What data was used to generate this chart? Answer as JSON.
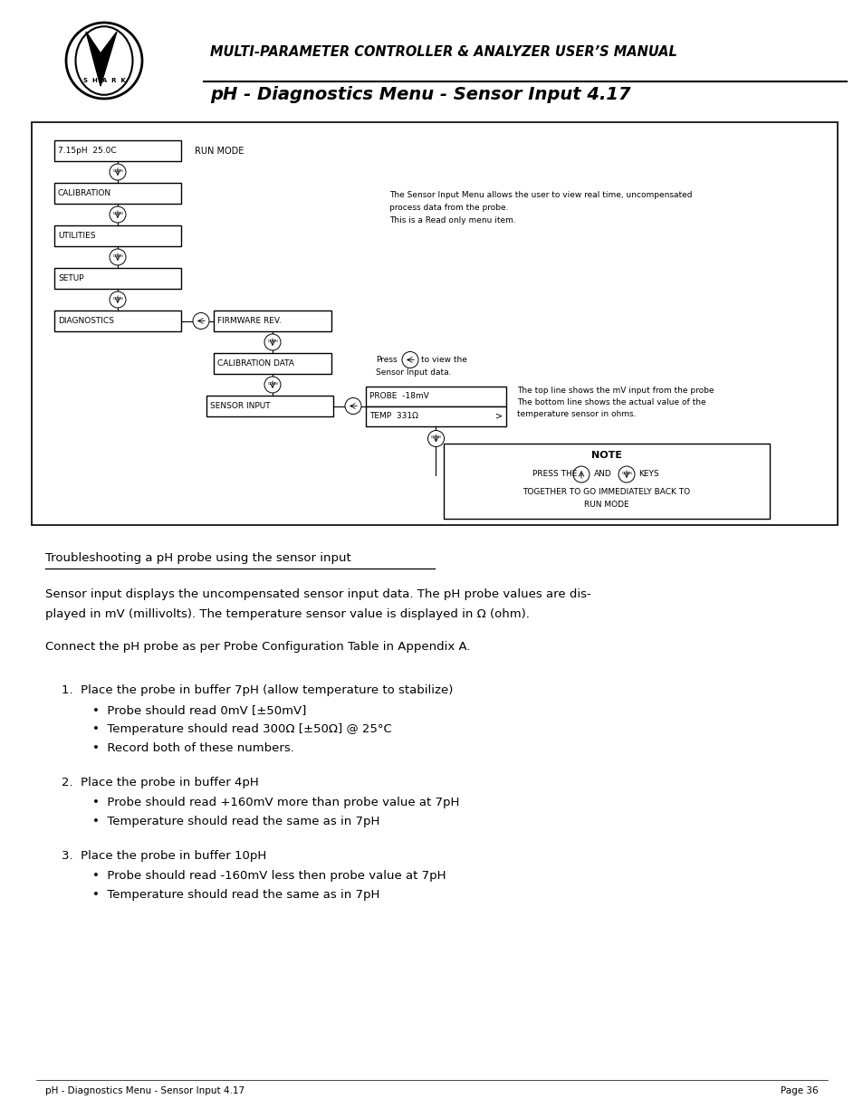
{
  "bg_color": "#ffffff",
  "page_width": 9.54,
  "page_height": 12.35,
  "header_title": "MULTI-PARAMETER CONTROLLER & ANALYZER USER’S MANUAL",
  "header_subtitle": "pH - Diagnostics Menu - Sensor Input 4.17",
  "footer_left": "pH - Diagnostics Menu - Sensor Input 4.17",
  "footer_right": "Page 36",
  "menu_items": [
    "7.15pH  25.0C",
    "CALIBRATION",
    "UTILITIES",
    "SETUP",
    "DIAGNOSTICS"
  ],
  "sub_menu1": "FIRMWARE REV.",
  "sub_menu2": "CALIBRATION DATA",
  "sub_menu3": "SENSOR INPUT",
  "probe_line1": "PROBE  -18mV",
  "probe_line2": "TEMP  331Ω",
  "run_mode_label": "RUN MODE",
  "note_title": "NOTE",
  "sensor_desc1": "The Sensor Input Menu allows the user to view real time, uncompensated",
  "sensor_desc2": "process data from the probe.",
  "sensor_desc3": "This is a Read only menu item.",
  "press_desc2": "to view the",
  "press_desc3": "Sensor Input data.",
  "probe_desc1": "The top line shows the mV input from the probe",
  "probe_desc2": "The bottom line shows the actual value of the",
  "probe_desc3": "temperature sensor in ohms.",
  "section_title": "Troubleshooting a pH probe using the sensor input",
  "para1_l1": "Sensor input displays the uncompensated sensor input data. The pH probe values are dis-",
  "para1_l2": "played in mV (millivolts). The temperature sensor value is displayed in Ω (ohm).",
  "para2": "Connect the pH probe as per Probe Configuration Table in Appendix A.",
  "list1_title": "1.  Place the probe in buffer 7pH (allow temperature to stabilize)",
  "list1_b1": "Probe should read 0mV [±50mV]",
  "list1_b2": "Temperature should read 300Ω [±50Ω] @ 25°C",
  "list1_b3": "Record both of these numbers.",
  "list2_title": "2.  Place the probe in buffer 4pH",
  "list2_b1": "Probe should read +160mV more than probe value at 7pH",
  "list2_b2": "Temperature should read the same as in 7pH",
  "list3_title": "3.  Place the probe in buffer 10pH",
  "list3_b1": "Probe should read -160mV less then probe value at 7pH",
  "list3_b2": "Temperature should read the same as in 7pH"
}
